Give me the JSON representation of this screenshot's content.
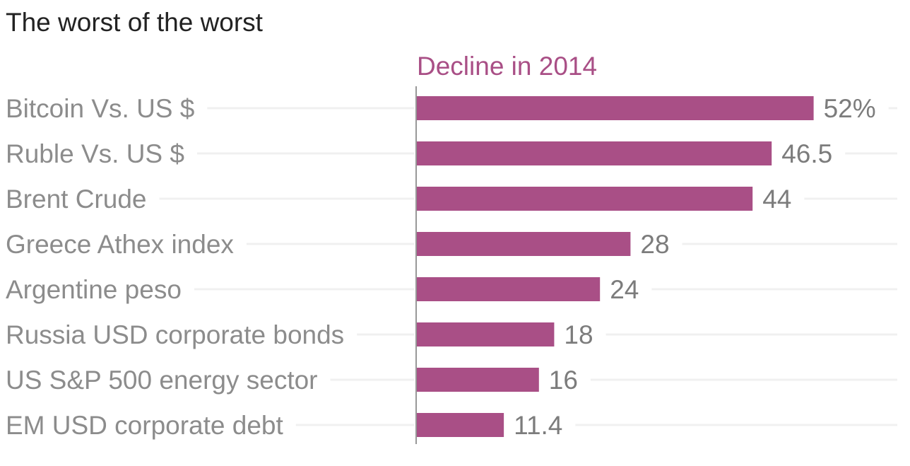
{
  "chart_data": {
    "type": "bar",
    "orientation": "horizontal",
    "title": "The worst of the worst",
    "series": [
      {
        "name": "Decline in 2014",
        "color": "#a94f86",
        "values": [
          52,
          46.5,
          44,
          28,
          24,
          18,
          16,
          11.4
        ],
        "value_labels": [
          "52%",
          "46.5",
          "44",
          "28",
          "24",
          "18",
          "16",
          "11.4"
        ]
      }
    ],
    "categories": [
      "Bitcoin Vs. US $",
      "Ruble Vs. US $",
      "Brent Crude",
      "Greece Athex index",
      "Argentine peso",
      "Russia USD corporate bonds",
      "US S&P 500 energy sector",
      "EM USD corporate debt"
    ],
    "xlim": [
      0,
      56
    ],
    "grid": false,
    "colors": {
      "title": "#222222",
      "label": "#8c8c8c",
      "value": "#7c7c7c",
      "series_label": "#a94f86",
      "guide": "#f0f0f0",
      "axis": "#777777"
    }
  }
}
